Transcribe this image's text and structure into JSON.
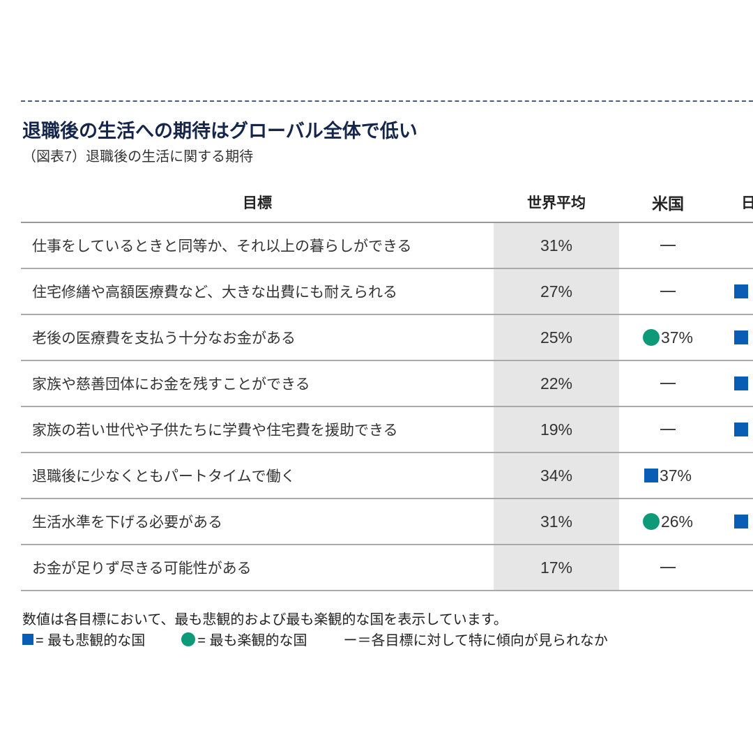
{
  "title": "退職後の生活への期待はグローバル全体で低い",
  "subtitle": "（図表7）退職後の生活に関する期待",
  "colors": {
    "pessimistic": "#0a5db5",
    "optimistic": "#0e9a78",
    "world_avg_bg": "#e6e6e6",
    "title": "#16264a"
  },
  "table": {
    "headers": [
      "目標",
      "世界平均",
      "米国",
      "日本"
    ],
    "rows": [
      {
        "goal": "仕事をしているときと同等か、それ以上の暮らしができる",
        "world": "31%",
        "us": {
          "marker": "dash",
          "value": ""
        },
        "col4": {
          "marker": "none"
        }
      },
      {
        "goal": "住宅修繕や高額医療費など、大きな出費にも耐えられる",
        "world": "27%",
        "us": {
          "marker": "dash",
          "value": ""
        },
        "col4": {
          "marker": "square"
        }
      },
      {
        "goal": "老後の医療費を支払う十分なお金がある",
        "world": "25%",
        "us": {
          "marker": "circle",
          "value": "37%"
        },
        "col4": {
          "marker": "square"
        }
      },
      {
        "goal": "家族や慈善団体にお金を残すことができる",
        "world": "22%",
        "us": {
          "marker": "dash",
          "value": ""
        },
        "col4": {
          "marker": "square"
        }
      },
      {
        "goal": "家族の若い世代や子供たちに学費や住宅費を援助できる",
        "world": "19%",
        "us": {
          "marker": "dash",
          "value": ""
        },
        "col4": {
          "marker": "square"
        }
      },
      {
        "goal": "退職後に少なくともパートタイムで働く",
        "world": "34%",
        "us": {
          "marker": "square",
          "value": "37%"
        },
        "col4": {
          "marker": "none"
        }
      },
      {
        "goal": "生活水準を下げる必要がある",
        "world": "31%",
        "us": {
          "marker": "circle",
          "value": "26%"
        },
        "col4": {
          "marker": "square"
        }
      },
      {
        "goal": "お金が足りず尽きる可能性がある",
        "world": "17%",
        "us": {
          "marker": "dash",
          "value": ""
        },
        "col4": {
          "marker": "none"
        }
      }
    ]
  },
  "notes": {
    "line1": "数値は各目標において、最も悲観的および最も楽観的な国を表示しています。",
    "pessimistic": "= 最も悲観的な国",
    "optimistic": "= 最も楽観的な国",
    "neutral": "ー＝各目標に対して特に傾向が見られなか"
  }
}
